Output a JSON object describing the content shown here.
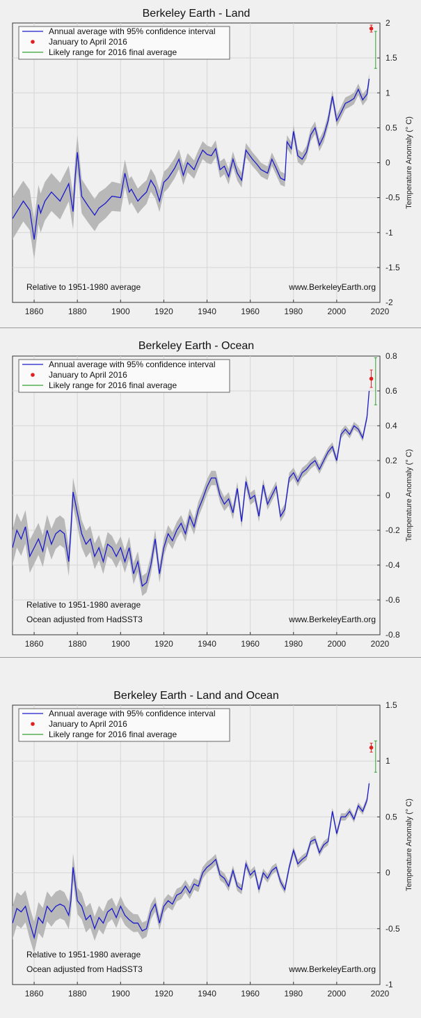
{
  "chart_data": [
    {
      "type": "line",
      "title": "Berkeley Earth - Land",
      "xlabel": "",
      "ylabel": "Temperature Anomaly (° C)",
      "xlim": [
        1850,
        2020
      ],
      "ylim": [
        -2,
        2
      ],
      "xticks": [
        1860,
        1880,
        1900,
        1920,
        1940,
        1960,
        1980,
        2000,
        2020
      ],
      "yticks": [
        -2,
        -1.5,
        -1,
        -0.5,
        0,
        0.5,
        1,
        1.5,
        2
      ],
      "ytick_labels": [
        "-2",
        "-1.5",
        "-1",
        "-0.5",
        "0",
        "0.5",
        "1",
        "1.5",
        "2"
      ],
      "grid": true,
      "legend_position": "top-left",
      "legend": [
        "Annual average with 95% confidence interval",
        "January to April 2016",
        "Likely range for 2016 final average"
      ],
      "notes": [
        "Relative to 1951-1980 average"
      ],
      "watermark": "www.BerkeleyEarth.org",
      "series": [
        {
          "name": "Annual average with 95% confidence interval",
          "x": [
            1850,
            1855,
            1858,
            1860,
            1862,
            1863,
            1865,
            1868,
            1872,
            1876,
            1878,
            1879,
            1880,
            1882,
            1885,
            1888,
            1890,
            1893,
            1896,
            1900,
            1902,
            1904,
            1905,
            1908,
            1910,
            1912,
            1914,
            1916,
            1918,
            1920,
            1922,
            1925,
            1927,
            1929,
            1931,
            1934,
            1936,
            1938,
            1940,
            1942,
            1944,
            1946,
            1948,
            1950,
            1952,
            1954,
            1956,
            1958,
            1961,
            1963,
            1965,
            1968,
            1970,
            1972,
            1974,
            1976,
            1977,
            1979,
            1980,
            1982,
            1984,
            1986,
            1988,
            1990,
            1992,
            1994,
            1996,
            1998,
            2000,
            2002,
            2004,
            2006,
            2008,
            2010,
            2012,
            2014,
            2015
          ],
          "y": [
            -0.8,
            -0.55,
            -0.68,
            -1.1,
            -0.6,
            -0.72,
            -0.55,
            -0.42,
            -0.55,
            -0.3,
            -0.7,
            -0.2,
            0.15,
            -0.48,
            -0.62,
            -0.75,
            -0.65,
            -0.58,
            -0.48,
            -0.5,
            -0.15,
            -0.42,
            -0.38,
            -0.55,
            -0.48,
            -0.42,
            -0.25,
            -0.35,
            -0.55,
            -0.28,
            -0.22,
            -0.08,
            0.05,
            -0.18,
            0.0,
            -0.1,
            0.05,
            0.18,
            0.12,
            0.1,
            0.2,
            -0.1,
            -0.05,
            -0.2,
            0.05,
            -0.15,
            -0.25,
            0.18,
            0.05,
            -0.02,
            -0.1,
            -0.15,
            0.05,
            -0.08,
            -0.22,
            -0.25,
            0.3,
            0.2,
            0.45,
            0.1,
            0.05,
            0.15,
            0.4,
            0.5,
            0.25,
            0.38,
            0.6,
            0.95,
            0.6,
            0.72,
            0.85,
            0.88,
            0.92,
            1.05,
            0.9,
            0.98,
            1.2
          ]
        }
      ],
      "ci_halfwidth": {
        "x": [
          1850,
          1880,
          1920,
          1960,
          2015
        ],
        "w": [
          0.3,
          0.25,
          0.15,
          0.1,
          0.08
        ]
      },
      "point_2016": {
        "x": 2016,
        "y": 1.92,
        "err": 0.05
      },
      "range_2016": {
        "x": 2018,
        "lo": 1.35,
        "hi": 1.88
      }
    },
    {
      "type": "line",
      "title": "Berkeley Earth - Ocean",
      "xlabel": "",
      "ylabel": "Temperature Anomaly (° C)",
      "xlim": [
        1850,
        2020
      ],
      "ylim": [
        -0.8,
        0.8
      ],
      "xticks": [
        1860,
        1880,
        1900,
        1920,
        1940,
        1960,
        1980,
        2000,
        2020
      ],
      "yticks": [
        -0.8,
        -0.6,
        -0.4,
        -0.2,
        0,
        0.2,
        0.4,
        0.6,
        0.8
      ],
      "ytick_labels": [
        "-0.8",
        "-0.6",
        "-0.4",
        "-0.2",
        "0",
        "0.2",
        "0.4",
        "0.6",
        "0.8"
      ],
      "grid": true,
      "legend_position": "top-left",
      "legend": [
        "Annual average with 95% confidence interval",
        "January to April 2016",
        "Likely range for 2016 final average"
      ],
      "notes": [
        "Relative to 1951-1980 average",
        "Ocean adjusted from HadSST3"
      ],
      "watermark": "www.BerkeleyEarth.org",
      "series": [
        {
          "name": "Annual average with 95% confidence interval",
          "x": [
            1850,
            1852,
            1854,
            1856,
            1858,
            1860,
            1862,
            1864,
            1866,
            1868,
            1870,
            1872,
            1874,
            1876,
            1877,
            1878,
            1880,
            1882,
            1884,
            1886,
            1888,
            1890,
            1892,
            1894,
            1896,
            1898,
            1900,
            1902,
            1904,
            1906,
            1908,
            1910,
            1912,
            1914,
            1916,
            1918,
            1920,
            1922,
            1924,
            1926,
            1928,
            1930,
            1932,
            1934,
            1936,
            1938,
            1940,
            1942,
            1944,
            1946,
            1948,
            1950,
            1952,
            1954,
            1956,
            1958,
            1960,
            1962,
            1964,
            1966,
            1968,
            1970,
            1972,
            1974,
            1976,
            1978,
            1980,
            1982,
            1984,
            1986,
            1988,
            1990,
            1992,
            1994,
            1996,
            1998,
            2000,
            2002,
            2004,
            2006,
            2008,
            2010,
            2012,
            2014,
            2015
          ],
          "y": [
            -0.3,
            -0.2,
            -0.25,
            -0.18,
            -0.35,
            -0.3,
            -0.25,
            -0.32,
            -0.2,
            -0.28,
            -0.22,
            -0.2,
            -0.22,
            -0.38,
            -0.2,
            0.02,
            -0.1,
            -0.22,
            -0.28,
            -0.25,
            -0.35,
            -0.3,
            -0.38,
            -0.28,
            -0.3,
            -0.35,
            -0.3,
            -0.38,
            -0.3,
            -0.45,
            -0.38,
            -0.52,
            -0.5,
            -0.4,
            -0.25,
            -0.45,
            -0.3,
            -0.22,
            -0.26,
            -0.2,
            -0.16,
            -0.22,
            -0.12,
            -0.18,
            -0.08,
            -0.02,
            0.05,
            0.1,
            0.1,
            0.0,
            -0.05,
            -0.02,
            -0.1,
            0.04,
            -0.15,
            0.08,
            -0.02,
            0.0,
            -0.12,
            0.06,
            -0.05,
            0.0,
            0.05,
            -0.12,
            -0.08,
            0.1,
            0.13,
            0.08,
            0.13,
            0.15,
            0.18,
            0.2,
            0.15,
            0.2,
            0.25,
            0.28,
            0.2,
            0.35,
            0.38,
            0.35,
            0.4,
            0.38,
            0.33,
            0.45,
            0.6
          ]
        }
      ],
      "ci_halfwidth": {
        "x": [
          1850,
          1880,
          1920,
          1960,
          2015
        ],
        "w": [
          0.1,
          0.08,
          0.05,
          0.035,
          0.02
        ]
      },
      "point_2016": {
        "x": 2016,
        "y": 0.67,
        "err": 0.05
      },
      "range_2016": {
        "x": 2018,
        "lo": 0.52,
        "hi": 0.79
      }
    },
    {
      "type": "line",
      "title": "Berkeley Earth - Land and Ocean",
      "xlabel": "",
      "ylabel": "Temperature Anomaly (° C)",
      "xlim": [
        1850,
        2020
      ],
      "ylim": [
        -1,
        1.5
      ],
      "xticks": [
        1860,
        1880,
        1900,
        1920,
        1940,
        1960,
        1980,
        2000,
        2020
      ],
      "yticks": [
        -1,
        -0.5,
        0,
        0.5,
        1,
        1.5
      ],
      "ytick_labels": [
        "-1",
        "-0.5",
        "0",
        "0.5",
        "1",
        "1.5"
      ],
      "grid": true,
      "legend_position": "top-left",
      "legend": [
        "Annual average with 95% confidence interval",
        "January to April 2016",
        "Likely range for 2016 final average"
      ],
      "notes": [
        "Relative to 1951-1980 average",
        "Ocean adjusted from HadSST3"
      ],
      "watermark": "www.BerkeleyEarth.org",
      "series": [
        {
          "name": "Annual average with 95% confidence interval",
          "x": [
            1850,
            1852,
            1854,
            1856,
            1858,
            1860,
            1862,
            1864,
            1866,
            1868,
            1870,
            1872,
            1874,
            1876,
            1877,
            1878,
            1880,
            1882,
            1884,
            1886,
            1888,
            1890,
            1892,
            1894,
            1896,
            1898,
            1900,
            1902,
            1904,
            1906,
            1908,
            1910,
            1912,
            1914,
            1916,
            1918,
            1920,
            1922,
            1924,
            1926,
            1928,
            1930,
            1932,
            1934,
            1936,
            1938,
            1940,
            1942,
            1944,
            1946,
            1948,
            1950,
            1952,
            1954,
            1956,
            1958,
            1960,
            1962,
            1964,
            1966,
            1968,
            1970,
            1972,
            1974,
            1976,
            1978,
            1980,
            1982,
            1984,
            1986,
            1988,
            1990,
            1992,
            1994,
            1996,
            1998,
            2000,
            2002,
            2004,
            2006,
            2008,
            2010,
            2012,
            2014,
            2015
          ],
          "y": [
            -0.45,
            -0.32,
            -0.35,
            -0.3,
            -0.45,
            -0.58,
            -0.4,
            -0.45,
            -0.3,
            -0.35,
            -0.3,
            -0.28,
            -0.3,
            -0.38,
            -0.25,
            0.05,
            -0.25,
            -0.3,
            -0.42,
            -0.38,
            -0.5,
            -0.4,
            -0.45,
            -0.35,
            -0.32,
            -0.4,
            -0.3,
            -0.38,
            -0.42,
            -0.45,
            -0.45,
            -0.52,
            -0.5,
            -0.35,
            -0.28,
            -0.45,
            -0.3,
            -0.25,
            -0.28,
            -0.2,
            -0.18,
            -0.12,
            -0.18,
            -0.1,
            -0.12,
            0.0,
            0.05,
            0.08,
            0.12,
            -0.02,
            -0.05,
            -0.12,
            0.02,
            -0.12,
            -0.15,
            0.08,
            -0.02,
            0.02,
            -0.15,
            0.0,
            -0.05,
            0.02,
            0.05,
            -0.08,
            -0.15,
            0.05,
            0.2,
            0.08,
            0.12,
            0.15,
            0.28,
            0.3,
            0.18,
            0.25,
            0.28,
            0.55,
            0.35,
            0.5,
            0.5,
            0.55,
            0.48,
            0.6,
            0.55,
            0.65,
            0.8
          ]
        }
      ],
      "ci_halfwidth": {
        "x": [
          1850,
          1880,
          1920,
          1960,
          2015
        ],
        "w": [
          0.15,
          0.12,
          0.06,
          0.04,
          0.03
        ]
      },
      "point_2016": {
        "x": 2016,
        "y": 1.12,
        "err": 0.04
      },
      "range_2016": {
        "x": 2018,
        "lo": 0.9,
        "hi": 1.18
      }
    }
  ],
  "colors": {
    "series": "#1a1acc",
    "ci_band": "#b8b8b8",
    "point": "#e02020",
    "range": "#33a033",
    "background": "#f0f0f0",
    "grid": "#d6d6d6"
  }
}
